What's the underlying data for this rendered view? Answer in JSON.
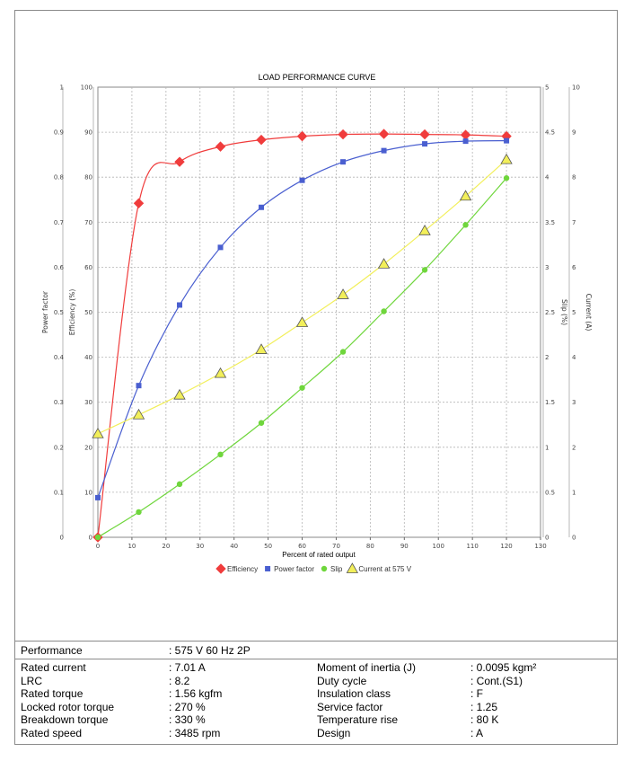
{
  "chart_data": {
    "type": "line",
    "title": "LOAD PERFORMANCE CURVE",
    "xlabel": "Percent of rated output",
    "xlim": [
      0,
      130
    ],
    "x_ticks": [
      0,
      10,
      20,
      30,
      40,
      50,
      60,
      70,
      80,
      90,
      100,
      110,
      120,
      130
    ],
    "grid": true,
    "legend_position": "bottom",
    "axes": {
      "power_factor": {
        "label": "Power factor",
        "side": "left-outer",
        "range": [
          0,
          1
        ],
        "ticks": [
          "0",
          "0.1",
          "0.2",
          "0.3",
          "0.4",
          "0.5",
          "0.6",
          "0.7",
          "0.8",
          "0.9",
          "1"
        ]
      },
      "efficiency": {
        "label": "Efficiency (%)",
        "side": "left-inner",
        "range": [
          0,
          100
        ],
        "ticks": [
          "0",
          "10",
          "20",
          "30",
          "40",
          "50",
          "60",
          "70",
          "80",
          "90",
          "100"
        ]
      },
      "slip": {
        "label": "Slip (%)",
        "side": "right-inner",
        "range": [
          0,
          5
        ],
        "ticks": [
          "0",
          "0.5",
          "1",
          "1.5",
          "2",
          "2.5",
          "3",
          "3.5",
          "4",
          "4.5",
          "5"
        ]
      },
      "current": {
        "label": "Current (A)",
        "side": "right-outer",
        "range": [
          0,
          10
        ],
        "ticks": [
          "0",
          "1",
          "2",
          "3",
          "4",
          "5",
          "6",
          "7",
          "8",
          "9",
          "10"
        ]
      }
    },
    "series": [
      {
        "name": "Efficiency",
        "axis": "efficiency",
        "color": "#f03c3c",
        "marker": "diamond",
        "x": [
          0,
          12,
          24,
          36,
          48,
          60,
          72,
          84,
          96,
          108,
          120
        ],
        "y": [
          0,
          74.2,
          83.4,
          86.8,
          88.3,
          89.1,
          89.5,
          89.6,
          89.5,
          89.4,
          89.1
        ]
      },
      {
        "name": "Power factor",
        "axis": "power_factor",
        "color": "#4a5fd0",
        "marker": "square",
        "x": [
          0,
          12,
          24,
          36,
          48,
          60,
          72,
          84,
          96,
          108,
          120
        ],
        "y": [
          0.088,
          0.337,
          0.516,
          0.644,
          0.733,
          0.793,
          0.834,
          0.859,
          0.874,
          0.88,
          0.881
        ]
      },
      {
        "name": "Slip",
        "axis": "slip",
        "color": "#6fd63c",
        "marker": "circle",
        "x": [
          0,
          12,
          24,
          36,
          48,
          60,
          72,
          84,
          96,
          108,
          120
        ],
        "y": [
          0,
          0.28,
          0.59,
          0.92,
          1.27,
          1.66,
          2.06,
          2.51,
          2.97,
          3.47,
          3.99
        ]
      },
      {
        "name": "Current at 575 V",
        "axis": "current",
        "color": "#f2ef5a",
        "marker": "triangle",
        "x": [
          0,
          12,
          24,
          36,
          48,
          60,
          72,
          84,
          96,
          108,
          120
        ],
        "y": [
          2.3,
          2.72,
          3.16,
          3.64,
          4.17,
          4.77,
          5.39,
          6.07,
          6.81,
          7.58,
          8.39
        ]
      }
    ]
  },
  "performance": {
    "label": "Performance",
    "value": ": 575 V 60 Hz 2P"
  },
  "specs_left": [
    {
      "label": "Rated current",
      "value": ": 7.01 A"
    },
    {
      "label": "LRC",
      "value": ": 8.2"
    },
    {
      "label": "Rated torque",
      "value": ": 1.56 kgfm"
    },
    {
      "label": "Locked rotor torque",
      "value": ": 270 %"
    },
    {
      "label": "Breakdown torque",
      "value": ": 330 %"
    },
    {
      "label": "Rated speed",
      "value": ": 3485 rpm"
    }
  ],
  "specs_right": [
    {
      "label": "Moment of inertia (J)",
      "value": ": 0.0095 kgm²"
    },
    {
      "label": "Duty cycle",
      "value": ": Cont.(S1)"
    },
    {
      "label": "Insulation class",
      "value": ": F"
    },
    {
      "label": "Service factor",
      "value": ": 1.25"
    },
    {
      "label": "Temperature rise",
      "value": ": 80 K"
    },
    {
      "label": "Design",
      "value": ": A"
    }
  ]
}
